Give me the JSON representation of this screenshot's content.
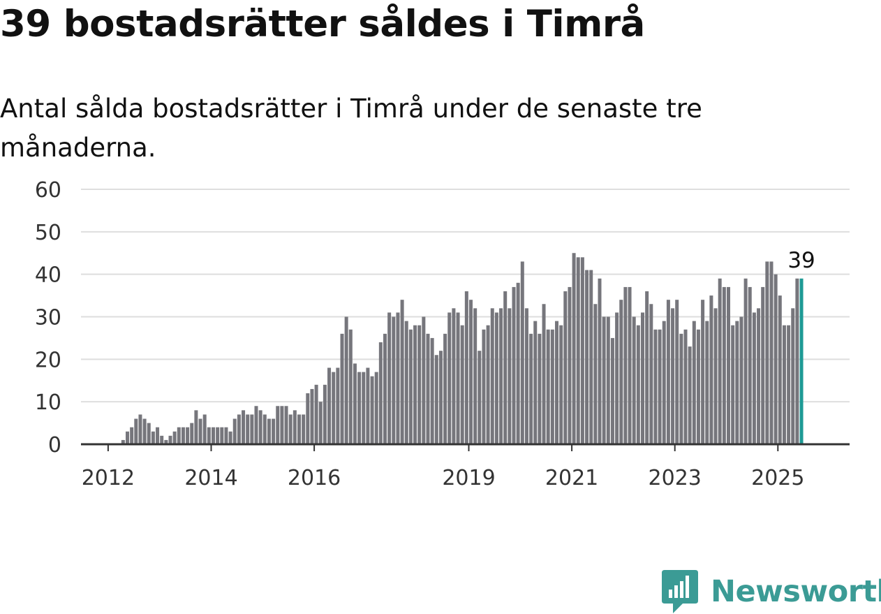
{
  "title": "39 bostadsrätter såldes i Timrå",
  "subtitle": "Antal sålda bostadsrätter i Timrå under de senaste tre månaderna.",
  "brand": {
    "name": "Newsworthy",
    "icon": "newsworthy-logo-icon",
    "color": "#3b9b95"
  },
  "chart_data": {
    "type": "bar",
    "title": "39 bostadsrätter såldes i Timrå",
    "subtitle": "Antal sålda bostadsrätter i Timrå under de senaste tre månaderna.",
    "x_label": "",
    "y_label": "",
    "y_range": [
      0,
      60
    ],
    "y_ticks": [
      0,
      10,
      20,
      30,
      40,
      50,
      60
    ],
    "x_ticks": [
      "2012",
      "2014",
      "2016",
      "2019",
      "2021",
      "2023",
      "2025"
    ],
    "grid": true,
    "start": "2011-07",
    "end": "2025-03",
    "frequency": "monthly",
    "values": [
      0,
      0,
      0,
      0,
      0,
      0,
      0,
      0,
      0,
      1,
      3,
      4,
      6,
      7,
      6,
      5,
      3,
      4,
      2,
      1,
      2,
      3,
      4,
      4,
      4,
      5,
      8,
      6,
      7,
      4,
      4,
      4,
      4,
      4,
      3,
      6,
      7,
      8,
      7,
      7,
      9,
      8,
      7,
      6,
      6,
      9,
      9,
      9,
      7,
      8,
      7,
      7,
      12,
      13,
      14,
      10,
      14,
      18,
      17,
      18,
      26,
      30,
      27,
      19,
      17,
      17,
      18,
      16,
      17,
      24,
      26,
      31,
      30,
      31,
      34,
      29,
      27,
      28,
      28,
      30,
      26,
      25,
      21,
      22,
      26,
      31,
      32,
      31,
      28,
      36,
      34,
      32,
      22,
      27,
      28,
      32,
      31,
      32,
      36,
      32,
      37,
      38,
      43,
      32,
      26,
      29,
      26,
      33,
      27,
      27,
      29,
      28,
      36,
      37,
      45,
      44,
      44,
      41,
      41,
      33,
      39,
      30,
      30,
      25,
      31,
      34,
      37,
      37,
      30,
      28,
      31,
      36,
      33,
      27,
      27,
      29,
      34,
      32,
      34,
      26,
      27,
      23,
      29,
      27,
      34,
      29,
      35,
      32,
      39,
      37,
      37,
      28,
      29,
      30,
      39,
      37,
      31,
      32,
      37,
      43,
      43,
      40,
      35,
      28,
      28,
      32,
      39,
      39
    ],
    "highlight": {
      "label": "39",
      "value": 39,
      "color": "#1e9a95"
    },
    "bar_color": "#76767c"
  }
}
